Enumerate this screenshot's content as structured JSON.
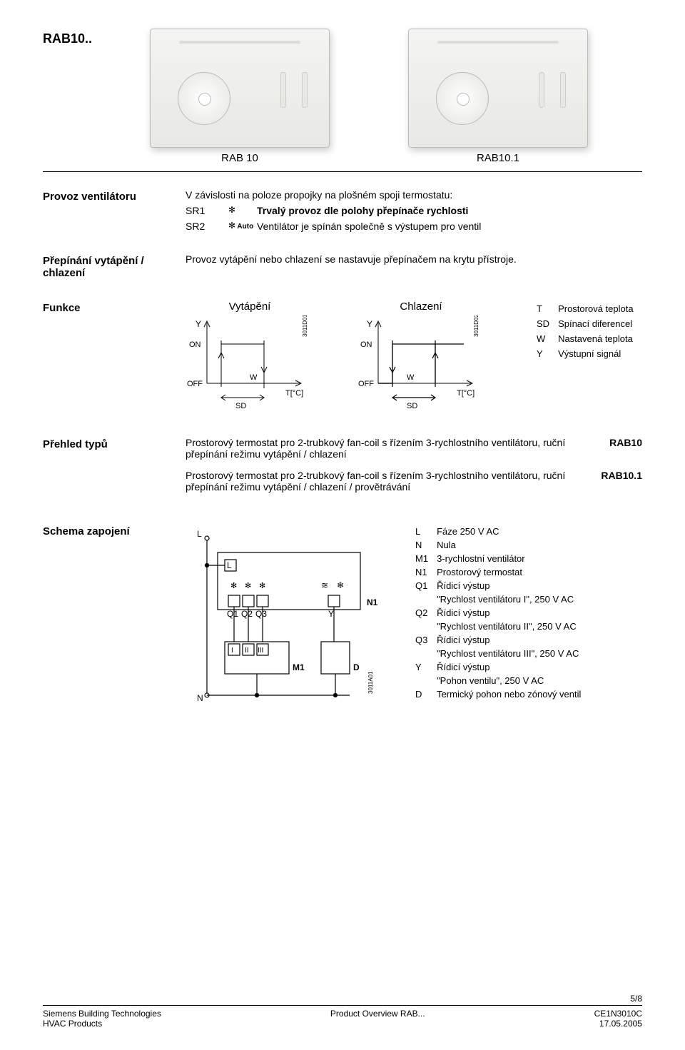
{
  "header": {
    "series": "RAB10..",
    "model_left": "RAB 10",
    "model_right": "RAB10.1"
  },
  "ventilator": {
    "label": "Provoz ventilátoru",
    "intro": "V závislosti na poloze propojky na plošném spoji termostatu:",
    "rows": [
      {
        "key": "SR1",
        "auto": "",
        "text": "Trvalý  provoz  dle  polohy přepínače rychlosti"
      },
      {
        "key": "SR2",
        "auto": "Auto",
        "text": "Ventilátor je spínán společně s výstupem pro ventil"
      }
    ]
  },
  "switching": {
    "label": "Přepínání vytápění / chlazení",
    "text": "Provoz vytápění nebo chlazení se nastavuje přepínačem na krytu přístroje."
  },
  "funkce": {
    "label": "Funkce",
    "heating_title": "Vytápění",
    "cooling_title": "Chlazení",
    "legend": [
      {
        "k": "T",
        "v": "Prostorová teplota"
      },
      {
        "k": "SD",
        "v": "Spínací diferencel"
      },
      {
        "k": "W",
        "v": "Nastavená teplota"
      },
      {
        "k": "Y",
        "v": "Výstupní signál"
      }
    ],
    "chart_labels": {
      "y": "Y",
      "on": "ON",
      "off": "OFF",
      "w": "W",
      "sd": "SD",
      "tc": "T[°C]",
      "code_h": "3011D01",
      "code_c": "3011D02"
    },
    "chart_style": {
      "axis_color": "#000000",
      "on_y": 20,
      "off_y": 80,
      "baseline": 80,
      "heating_rise_x": 40,
      "heating_fall_x": 100,
      "cooling_rise_x": 100,
      "cooling_fall_x": 40,
      "w_x": 100,
      "w_x_cool": 40,
      "sd_span": [
        40,
        100
      ]
    }
  },
  "types": {
    "label": "Přehled typů",
    "rows": [
      {
        "desc": "Prostorový termostat pro 2-trubkový fan-coil s řízením 3-rychlostního ventilátoru, ruční přepínání režimu vytápění / chlazení",
        "code": "RAB10"
      },
      {
        "desc": "Prostorový termostat pro 2-trubkový fan-coil s řízením 3-rychlostního ventilátoru, ruční přepínání režimu vytápění / chlazení / provětrávání",
        "code": "RAB10.1"
      }
    ]
  },
  "schema": {
    "label": "Schema zapojení",
    "svg": {
      "L": "L",
      "N": "N",
      "Q1": "Q1",
      "Q2": "Q2",
      "Q3": "Q3",
      "Y": "Y",
      "N1": "N1",
      "M1": "M1",
      "D": "D",
      "I": "I",
      "II": "II",
      "III": "III",
      "code": "3011A01"
    },
    "legend": [
      {
        "k": "L",
        "v": "Fáze 250 V AC"
      },
      {
        "k": "N",
        "v": "Nula"
      },
      {
        "k": "M1",
        "v": "3-rychlostní ventilátor"
      },
      {
        "k": "N1",
        "v": "Prostorový termostat"
      },
      {
        "k": "Q1",
        "v": "Řídicí výstup"
      },
      {
        "k": "",
        "v": "\"Rychlost ventilátoru I\", 250 V AC"
      },
      {
        "k": "Q2",
        "v": "Řídicí výstup"
      },
      {
        "k": "",
        "v": "\"Rychlost ventilátoru II\", 250 V AC"
      },
      {
        "k": "Q3",
        "v": "Řídicí výstup"
      },
      {
        "k": "",
        "v": "\"Rychlost ventilátoru III\", 250 V AC"
      },
      {
        "k": "Y",
        "v": "Řídicí výstup"
      },
      {
        "k": "",
        "v": "\"Pohon ventilu\", 250 V AC"
      },
      {
        "k": "D",
        "v": "Termický pohon nebo zónový ventil"
      }
    ]
  },
  "footer": {
    "page": "5/8",
    "left1": "Siemens Building Technologies",
    "left2": "HVAC Products",
    "mid": "Product Overview RAB...",
    "right1": "CE1N3010C",
    "right2": "17.05.2005"
  }
}
